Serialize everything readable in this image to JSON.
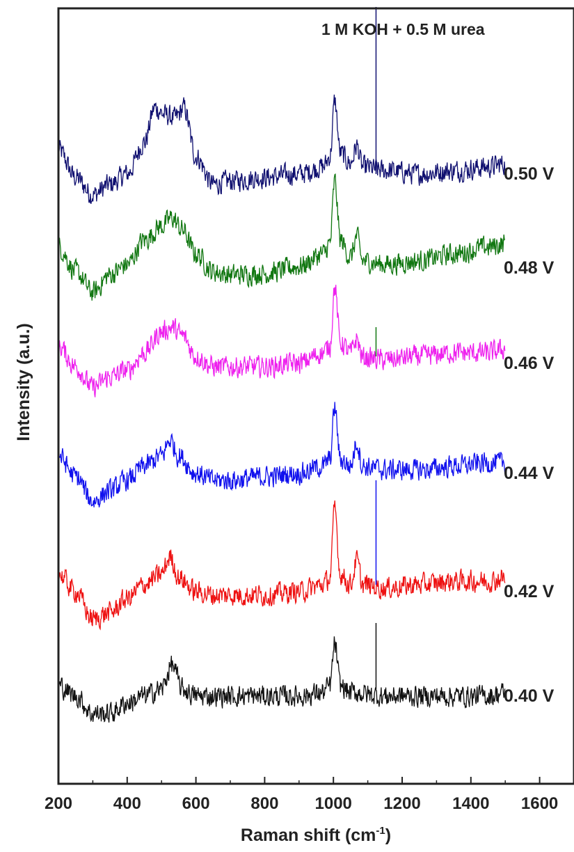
{
  "chart_data": {
    "type": "line",
    "xlabel": "Raman shift (cm",
    "xlabel_superscript": "-1",
    "xlabel_close": ")",
    "ylabel": "Intensity (a.u.)",
    "xlim": [
      200,
      1700
    ],
    "xticks": [
      "200",
      "400",
      "600",
      "800",
      "1000",
      "1200",
      "1400",
      "1600"
    ],
    "yticks_shown": false,
    "annotation": "1 M KOH + 0.5 M urea",
    "grid": false,
    "legend": "labels at right end of each trace",
    "x_range_measured": [
      200,
      1500
    ],
    "series": [
      {
        "name": "0.50 V",
        "color": "#101070",
        "noise": 14,
        "sharp_spike_height": 240,
        "points": [
          [
            200,
            35
          ],
          [
            250,
            -5
          ],
          [
            300,
            -30
          ],
          [
            350,
            -15
          ],
          [
            400,
            0
          ],
          [
            450,
            45
          ],
          [
            480,
            95
          ],
          [
            510,
            85
          ],
          [
            540,
            80
          ],
          [
            565,
            95
          ],
          [
            600,
            25
          ],
          [
            650,
            -15
          ],
          [
            700,
            -10
          ],
          [
            800,
            -5
          ],
          [
            900,
            0
          ],
          [
            970,
            10
          ],
          [
            990,
            25
          ],
          [
            1004,
            105
          ],
          [
            1020,
            30
          ],
          [
            1050,
            15
          ],
          [
            1068,
            40
          ],
          [
            1085,
            10
          ],
          [
            1150,
            5
          ],
          [
            1250,
            0
          ],
          [
            1350,
            5
          ],
          [
            1450,
            10
          ],
          [
            1500,
            15
          ]
        ]
      },
      {
        "name": "0.48 V",
        "color": "#117711",
        "noise": 14,
        "sharp_spike_height": 0,
        "points": [
          [
            200,
            30
          ],
          [
            250,
            -5
          ],
          [
            300,
            -35
          ],
          [
            350,
            -10
          ],
          [
            400,
            5
          ],
          [
            450,
            40
          ],
          [
            500,
            60
          ],
          [
            530,
            72
          ],
          [
            560,
            55
          ],
          [
            600,
            20
          ],
          [
            650,
            -5
          ],
          [
            700,
            -10
          ],
          [
            800,
            -8
          ],
          [
            900,
            2
          ],
          [
            970,
            20
          ],
          [
            990,
            35
          ],
          [
            1004,
            125
          ],
          [
            1020,
            40
          ],
          [
            1050,
            15
          ],
          [
            1068,
            45
          ],
          [
            1085,
            10
          ],
          [
            1150,
            5
          ],
          [
            1250,
            10
          ],
          [
            1350,
            20
          ],
          [
            1450,
            30
          ],
          [
            1500,
            35
          ]
        ]
      },
      {
        "name": "0.46 V",
        "color": "#ee22ee",
        "noise": 14,
        "sharp_spike_height": 0,
        "points": [
          [
            200,
            25
          ],
          [
            250,
            -5
          ],
          [
            300,
            -35
          ],
          [
            350,
            -20
          ],
          [
            400,
            -10
          ],
          [
            450,
            15
          ],
          [
            500,
            45
          ],
          [
            530,
            52
          ],
          [
            560,
            40
          ],
          [
            600,
            10
          ],
          [
            650,
            -5
          ],
          [
            700,
            -5
          ],
          [
            800,
            -5
          ],
          [
            900,
            0
          ],
          [
            970,
            15
          ],
          [
            990,
            25
          ],
          [
            1004,
            110
          ],
          [
            1020,
            30
          ],
          [
            1050,
            15
          ],
          [
            1068,
            35
          ],
          [
            1085,
            8
          ],
          [
            1150,
            5
          ],
          [
            1250,
            10
          ],
          [
            1350,
            15
          ],
          [
            1450,
            15
          ],
          [
            1500,
            20
          ]
        ]
      },
      {
        "name": "0.44 V",
        "color": "#1111ee",
        "noise": 14,
        "sharp_spike_height": 0,
        "points": [
          [
            200,
            25
          ],
          [
            250,
            -5
          ],
          [
            300,
            -40
          ],
          [
            350,
            -25
          ],
          [
            400,
            -10
          ],
          [
            450,
            10
          ],
          [
            500,
            25
          ],
          [
            525,
            48
          ],
          [
            550,
            25
          ],
          [
            600,
            0
          ],
          [
            650,
            -10
          ],
          [
            700,
            -10
          ],
          [
            800,
            -5
          ],
          [
            900,
            0
          ],
          [
            970,
            10
          ],
          [
            990,
            20
          ],
          [
            1004,
            95
          ],
          [
            1020,
            20
          ],
          [
            1050,
            10
          ],
          [
            1068,
            45
          ],
          [
            1085,
            10
          ],
          [
            1150,
            5
          ],
          [
            1250,
            5
          ],
          [
            1350,
            10
          ],
          [
            1450,
            15
          ],
          [
            1500,
            15
          ]
        ]
      },
      {
        "name": "0.42 V",
        "color": "#ee1111",
        "noise": 14,
        "sharp_spike_height": 0,
        "points": [
          [
            200,
            25
          ],
          [
            250,
            0
          ],
          [
            300,
            -40
          ],
          [
            350,
            -30
          ],
          [
            400,
            -10
          ],
          [
            450,
            10
          ],
          [
            500,
            25
          ],
          [
            525,
            50
          ],
          [
            550,
            20
          ],
          [
            600,
            0
          ],
          [
            650,
            -5
          ],
          [
            700,
            -5
          ],
          [
            800,
            -5
          ],
          [
            900,
            0
          ],
          [
            970,
            10
          ],
          [
            990,
            20
          ],
          [
            1004,
            120
          ],
          [
            1020,
            25
          ],
          [
            1050,
            10
          ],
          [
            1068,
            45
          ],
          [
            1085,
            10
          ],
          [
            1150,
            5
          ],
          [
            1250,
            10
          ],
          [
            1350,
            15
          ],
          [
            1450,
            15
          ],
          [
            1500,
            20
          ]
        ]
      },
      {
        "name": "0.40 V",
        "color": "#111111",
        "noise": 14,
        "sharp_spike_height": 0,
        "points": [
          [
            200,
            15
          ],
          [
            250,
            0
          ],
          [
            300,
            -25
          ],
          [
            350,
            -25
          ],
          [
            400,
            -10
          ],
          [
            450,
            0
          ],
          [
            500,
            10
          ],
          [
            530,
            45
          ],
          [
            560,
            10
          ],
          [
            600,
            0
          ],
          [
            700,
            0
          ],
          [
            800,
            0
          ],
          [
            900,
            0
          ],
          [
            970,
            5
          ],
          [
            990,
            15
          ],
          [
            1004,
            75
          ],
          [
            1020,
            15
          ],
          [
            1050,
            5
          ],
          [
            1150,
            0
          ],
          [
            1250,
            0
          ],
          [
            1350,
            0
          ],
          [
            1450,
            0
          ],
          [
            1500,
            5
          ]
        ]
      }
    ],
    "sharp_peak_x": 1124
  }
}
